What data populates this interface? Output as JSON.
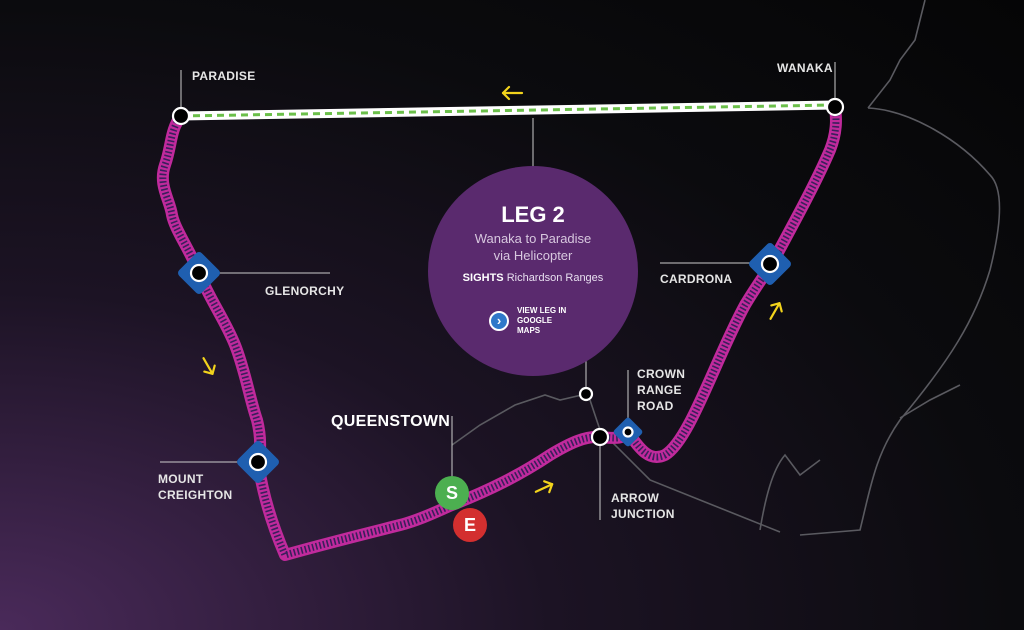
{
  "leg": {
    "title": "LEG 2",
    "subtitle_line1": "Wanaka to Paradise",
    "subtitle_line2": "via Helicopter",
    "sights_label": "SIGHTS",
    "sights_value": "Richardson Ranges",
    "maps_link_line1": "VIEW LEG IN",
    "maps_link_line2": "GOOGLE MAPS"
  },
  "places": {
    "paradise": "PARADISE",
    "wanaka": "WANAKA",
    "glenorchy": "GLENORCHY",
    "cardrona": "CARDRONA",
    "crown_range_road_1": "CROWN",
    "crown_range_road_2": "RANGE",
    "crown_range_road_3": "ROAD",
    "queenstown": "QUEENSTOWN",
    "mount_creighton_1": "MOUNT",
    "mount_creighton_2": "CREIGHTON",
    "arrow_junction_1": "ARROW",
    "arrow_junction_2": "JUNCTION"
  },
  "markers": {
    "start": "S",
    "end": "E"
  },
  "icons": {
    "direction": "arrow-icon",
    "link": "chevron-right-icon"
  },
  "colors": {
    "route_road": "#c02a9c",
    "route_helicopter": "#ffffff",
    "helicopter_dash": "#6bbf4a",
    "sight_marker": "#1f5fb0",
    "start_marker": "#4caf50",
    "end_marker": "#d32f2f",
    "direction_arrow": "#f2d31c",
    "leg_circle": "#5a2a6e"
  }
}
